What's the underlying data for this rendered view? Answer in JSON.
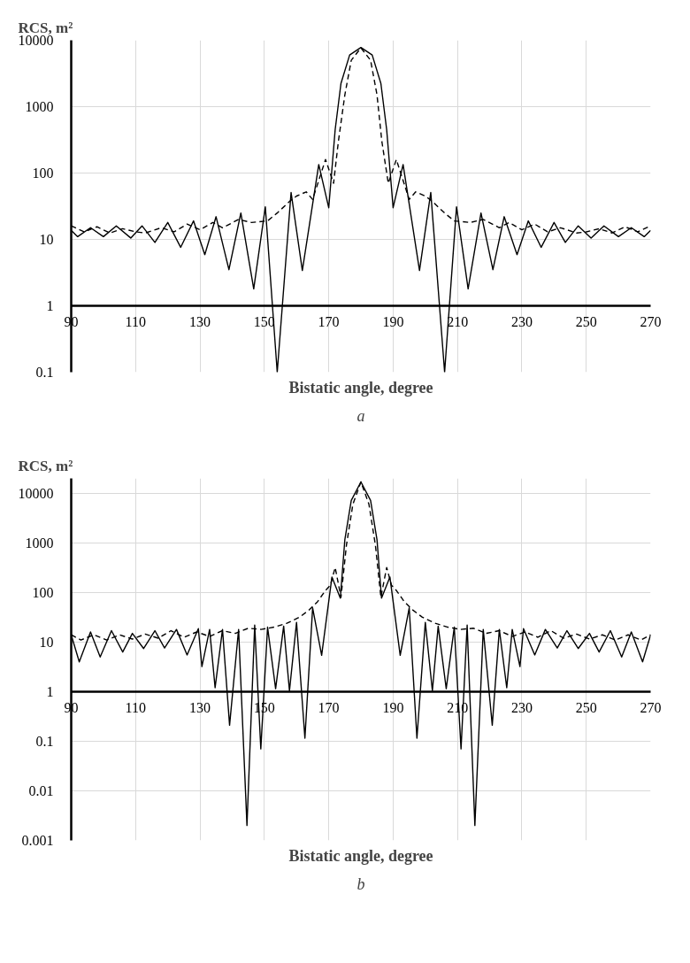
{
  "chart_data": [
    {
      "type": "line",
      "ylabel": "RCS, m²",
      "xlabel": "Bistatic angle, degree",
      "annotations": [
        "a"
      ],
      "log": "y",
      "grid": true,
      "xlim": [
        90,
        270
      ],
      "xticks": [
        90,
        110,
        130,
        150,
        170,
        190,
        210,
        230,
        250,
        270
      ],
      "ylim": [
        0.1,
        10000
      ],
      "yticks": [
        0.1,
        1,
        10,
        100,
        1000,
        10000
      ],
      "series": [
        {
          "color": "#000000",
          "line_style": "solid",
          "x": [
            90,
            92,
            96,
            100,
            104,
            108.5,
            112,
            116,
            120,
            124,
            128,
            131.5,
            135,
            139,
            142.7,
            146.7,
            150.3,
            154,
            158.3,
            161.8,
            166.9,
            170,
            172,
            173.8,
            176.5,
            180,
            183.5,
            186.2,
            188,
            190,
            193.1,
            198.2,
            201.7,
            206,
            209.7,
            213.3,
            217.3,
            221,
            224.5,
            228.5,
            232,
            236,
            240,
            243.5,
            247.5,
            251.5,
            255.5,
            260,
            264,
            268,
            270
          ],
          "values": [
            13.7,
            11,
            15,
            11,
            16,
            10.5,
            16,
            9,
            18,
            7.6,
            19,
            5.9,
            22,
            3.5,
            25,
            1.8,
            31,
            0.1,
            51,
            3.4,
            134,
            30,
            450,
            2240,
            6000,
            7800,
            6000,
            2240,
            450,
            30,
            134,
            3.4,
            51,
            0.1,
            31,
            1.8,
            25,
            3.5,
            22,
            5.9,
            19,
            7.6,
            18,
            9,
            16,
            10.5,
            16,
            11,
            15,
            11,
            13.7
          ]
        },
        {
          "color": "#000000",
          "line_style": "dashed",
          "x": [
            90,
            94,
            98,
            102,
            106,
            110,
            113,
            118,
            122,
            126,
            130,
            134,
            137,
            142,
            146,
            151,
            154,
            158,
            160,
            163,
            165,
            169,
            171.5,
            173,
            175,
            177,
            180,
            183,
            185,
            186.5,
            188.5,
            191,
            195,
            197,
            200,
            202,
            206,
            209,
            214,
            218,
            223,
            226,
            230,
            234,
            238,
            242,
            247,
            250,
            254,
            258,
            262,
            266,
            270
          ],
          "values": [
            16,
            13,
            15.5,
            12.5,
            14.5,
            13,
            12.5,
            15,
            13,
            17,
            14,
            18,
            15,
            20,
            18,
            19,
            25,
            38,
            45,
            52,
            40,
            160,
            70,
            300,
            1500,
            5000,
            7700,
            5000,
            1500,
            300,
            70,
            160,
            40,
            52,
            45,
            38,
            25,
            19,
            18,
            20,
            15,
            18,
            14,
            17,
            13,
            15,
            12.5,
            13,
            14.5,
            12.5,
            15.5,
            13,
            16
          ]
        }
      ]
    },
    {
      "type": "line",
      "ylabel": "RCS, m²",
      "xlabel": "Bistatic angle, degree",
      "annotations": [
        "b"
      ],
      "log": "y",
      "grid": true,
      "xlim": [
        90,
        270
      ],
      "xticks": [
        90,
        110,
        130,
        150,
        170,
        190,
        210,
        230,
        250,
        270
      ],
      "ylim": [
        0.001,
        20000
      ],
      "yticks": [
        0.001,
        0.01,
        0.1,
        1,
        10,
        100,
        1000,
        10000
      ],
      "series": [
        {
          "color": "#000000",
          "line_style": "solid",
          "x": [
            90,
            92.5,
            96,
            99,
            102.5,
            106,
            109,
            112.5,
            116,
            119,
            122.7,
            126,
            129.5,
            130.6,
            133,
            134.7,
            137,
            139.2,
            142,
            144.6,
            147,
            148.9,
            151,
            153.5,
            156,
            157.8,
            160,
            162.6,
            165,
            167.8,
            171,
            173.6,
            175,
            177,
            180,
            183,
            185,
            186.4,
            189,
            192.2,
            195,
            197.4,
            200,
            202.2,
            204,
            206.5,
            209,
            211.1,
            213,
            215.4,
            218,
            220.8,
            223,
            225.3,
            227,
            229.4,
            230.5,
            234,
            237.3,
            241,
            244,
            247.5,
            251,
            254,
            257.5,
            261,
            264,
            267.5,
            270
          ],
          "values": [
            14,
            4,
            16,
            5,
            17,
            6.3,
            15,
            7.4,
            17,
            7.6,
            18,
            5.5,
            18.7,
            3.2,
            18,
            1.2,
            18,
            0.21,
            18,
            0.002,
            22,
            0.07,
            20,
            1.15,
            21,
            1.04,
            25,
            0.115,
            49,
            5.4,
            205,
            77,
            1150,
            7200,
            17000,
            7200,
            1150,
            77,
            205,
            5.4,
            49,
            0.115,
            25,
            1.04,
            21,
            1.15,
            20,
            0.07,
            22,
            0.002,
            18,
            0.21,
            18,
            1.2,
            18,
            3.2,
            18.7,
            5.5,
            18,
            7.6,
            17,
            7.4,
            15,
            6.3,
            17,
            5,
            16,
            4,
            14
          ]
        },
        {
          "color": "#000000",
          "line_style": "dashed",
          "x": [
            90,
            93,
            97,
            101,
            105,
            109,
            113,
            117,
            121,
            125,
            129,
            133,
            137,
            141,
            145,
            149,
            153,
            157,
            161,
            164,
            166.5,
            169,
            170.5,
            172,
            173.8,
            175.5,
            177.5,
            180,
            182.5,
            184.5,
            186.2,
            188,
            189.5,
            191,
            193.5,
            196,
            199,
            203,
            207,
            211,
            215,
            219,
            223,
            227,
            231,
            235,
            239,
            243,
            247,
            251,
            255,
            259,
            263,
            267,
            270
          ],
          "values": [
            14,
            11,
            14,
            11,
            14,
            11.5,
            14.5,
            12,
            17,
            12.5,
            16,
            13,
            17,
            15,
            19,
            18,
            20,
            24,
            32,
            45,
            65,
            110,
            140,
            320,
            80,
            900,
            6000,
            17000,
            6000,
            900,
            80,
            320,
            140,
            110,
            65,
            45,
            32,
            24,
            20,
            18,
            19,
            15,
            17,
            13,
            16,
            12.5,
            17,
            12,
            14.5,
            11.5,
            14,
            11,
            14,
            11,
            14
          ]
        }
      ]
    }
  ]
}
